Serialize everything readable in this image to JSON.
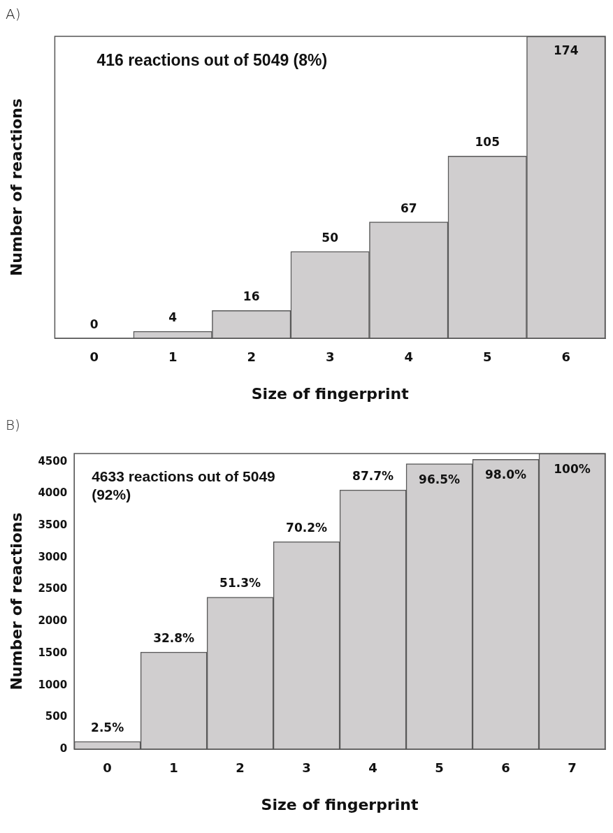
{
  "chart_data": [
    {
      "type": "bar",
      "title": "A)",
      "xlabel": "Size of fingerprint",
      "ylabel": "Number of reactions",
      "categories": [
        "0",
        "1",
        "2",
        "3",
        "4",
        "5",
        "6"
      ],
      "values": [
        0,
        4,
        16,
        50,
        67,
        105,
        174
      ],
      "color": "#d0cecf",
      "ylim": [
        0,
        174
      ],
      "data_labels": true,
      "tick_labels": "x",
      "grid": false,
      "annotations": [
        "416 reactions out of 5049 (8%)"
      ]
    },
    {
      "type": "bar",
      "title": "B)",
      "xlabel": "Size of fingerprint",
      "ylabel": "Number of reactions",
      "categories": [
        "0",
        "1",
        "2",
        "3",
        "4",
        "5",
        "6",
        "7"
      ],
      "values": [
        120,
        1520,
        2380,
        3250,
        4060,
        4470,
        4540,
        4630
      ],
      "color": "#d0cecf",
      "ylim": [
        0,
        4630
      ],
      "yticks": [
        0,
        500,
        1000,
        1500,
        2000,
        2500,
        3000,
        3500,
        4000,
        4500
      ],
      "grid": false,
      "annotations": [
        "4633 reactions out of 5049 (92%)",
        {
          "text": "2.5%",
          "x": "0",
          "y": 120
        },
        {
          "text": "32.8%",
          "x": "1",
          "y": 1520
        },
        {
          "text": "51.3%",
          "x": "2",
          "y": 2380
        },
        {
          "text": "70.2%",
          "x": "3",
          "y": 3250
        },
        {
          "text": "87.7%",
          "x": "4",
          "y": 4060
        },
        {
          "text": "96.5%",
          "x": "5",
          "y": 4470
        },
        {
          "text": "98.0%",
          "x": "6",
          "y": 4540
        },
        {
          "text": "100%",
          "x": "7",
          "y": 4630
        }
      ]
    }
  ]
}
